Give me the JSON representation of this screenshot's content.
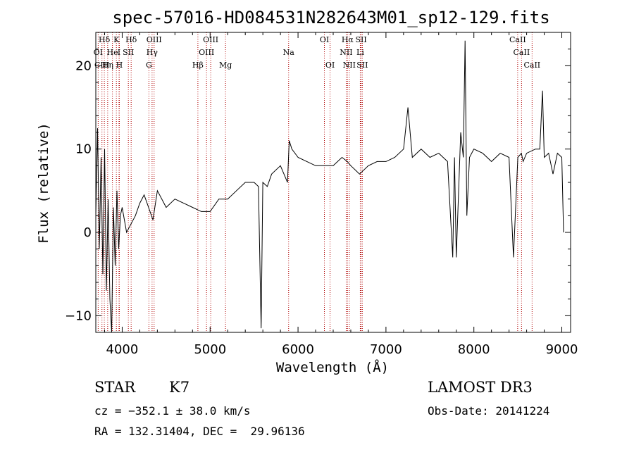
{
  "chart_data": {
    "type": "line",
    "title": "spec-57016-HD084531N282643M01_sp12-129.fits",
    "xlabel": "Wavelength (Å)",
    "ylabel": "Flux (relative)",
    "xlim": [
      3700,
      9100
    ],
    "ylim": [
      -12,
      24
    ],
    "xticks": [
      4000,
      5000,
      6000,
      7000,
      8000,
      9000
    ],
    "yticks": [
      -10,
      0,
      10,
      20
    ],
    "grid": false,
    "series": [
      {
        "name": "flux",
        "x": [
          3700,
          3720,
          3740,
          3760,
          3780,
          3800,
          3820,
          3840,
          3860,
          3880,
          3900,
          3920,
          3940,
          3960,
          3980,
          4000,
          4050,
          4100,
          4150,
          4200,
          4250,
          4300,
          4350,
          4400,
          4500,
          4600,
          4700,
          4800,
          4900,
          5000,
          5100,
          5200,
          5300,
          5400,
          5500,
          5550,
          5580,
          5600,
          5650,
          5700,
          5800,
          5880,
          5900,
          5930,
          6000,
          6100,
          6200,
          6300,
          6400,
          6500,
          6560,
          6600,
          6700,
          6800,
          6900,
          7000,
          7100,
          7200,
          7250,
          7300,
          7400,
          7500,
          7600,
          7700,
          7760,
          7780,
          7800,
          7850,
          7880,
          7900,
          7920,
          7950,
          8000,
          8100,
          8200,
          8300,
          8400,
          8450,
          8500,
          8540,
          8560,
          8600,
          8700,
          8750,
          8780,
          8800,
          8850,
          8900,
          8950,
          9000,
          9020
        ],
        "y": [
          2,
          12.5,
          -2,
          9,
          -5,
          10,
          -7,
          4,
          -8,
          -12,
          3,
          -4,
          5,
          -2,
          2,
          3,
          0,
          1,
          2,
          3.5,
          4.5,
          3,
          1.5,
          5,
          3,
          4,
          3.5,
          3,
          2.5,
          2.5,
          4,
          4,
          5,
          6,
          6,
          5.5,
          -11.5,
          6,
          5.5,
          7,
          8,
          6,
          11,
          10,
          9,
          8.5,
          8,
          8,
          8,
          9,
          8.5,
          8,
          7,
          8,
          8.5,
          8.5,
          9,
          10,
          15,
          9,
          10,
          9,
          9.5,
          8.5,
          -3,
          9,
          -3,
          12,
          9,
          23,
          2,
          9,
          10,
          9.5,
          8.5,
          9.5,
          9,
          -3,
          9,
          9.5,
          8.5,
          9.5,
          10,
          10,
          17,
          9,
          9.5,
          7,
          9.5,
          9,
          0
        ]
      }
    ],
    "lines": [
      {
        "label": "Hδ",
        "wl": 3797,
        "row": 0
      },
      {
        "label": "K",
        "wl": 3934,
        "row": 0
      },
      {
        "label": "Hδ",
        "wl": 4102,
        "row": 0
      },
      {
        "label": "OIII",
        "wl": 4363,
        "row": 0
      },
      {
        "label": "OIII",
        "wl": 5007,
        "row": 0
      },
      {
        "label": "OI",
        "wl": 6300,
        "row": 0
      },
      {
        "label": "Hα",
        "wl": 6563,
        "row": 0
      },
      {
        "label": "SII",
        "wl": 6717,
        "row": 0
      },
      {
        "label": "CaII",
        "wl": 8498,
        "row": 0
      },
      {
        "label": "OI",
        "wl": 3727,
        "row": 1
      },
      {
        "label": "He",
        "wl": 3889,
        "row": 1
      },
      {
        "label": "I",
        "wl": 3964,
        "row": 1
      },
      {
        "label": "SII",
        "wl": 4070,
        "row": 1
      },
      {
        "label": "Hγ",
        "wl": 4340,
        "row": 1
      },
      {
        "label": "OIII",
        "wl": 4959,
        "row": 1
      },
      {
        "label": "Na",
        "wl": 5893,
        "row": 1
      },
      {
        "label": "NII",
        "wl": 6548,
        "row": 1
      },
      {
        "label": "Li",
        "wl": 6708,
        "row": 1
      },
      {
        "label": "CaII",
        "wl": 8542,
        "row": 1
      },
      {
        "label": "CIII",
        "wl": 3770,
        "row": 2
      },
      {
        "label": "Hη",
        "wl": 3835,
        "row": 2
      },
      {
        "label": "H",
        "wl": 3968,
        "row": 2
      },
      {
        "label": "G",
        "wl": 4304,
        "row": 2
      },
      {
        "label": "Hβ",
        "wl": 4861,
        "row": 2
      },
      {
        "label": "Mg",
        "wl": 5175,
        "row": 2
      },
      {
        "label": "OI",
        "wl": 6364,
        "row": 2
      },
      {
        "label": "NII",
        "wl": 6583,
        "row": 2
      },
      {
        "label": "SII",
        "wl": 6731,
        "row": 2
      },
      {
        "label": "CaII",
        "wl": 8662,
        "row": 2
      }
    ]
  },
  "info": {
    "object_class": "STAR",
    "subclass": "K7",
    "survey": "LAMOST DR3",
    "cz": "cz = −352.1 ± 38.0 km/s",
    "obs_date": "Obs-Date: 20141224",
    "coords": "RA = 132.31404, DEC =  29.96136"
  }
}
